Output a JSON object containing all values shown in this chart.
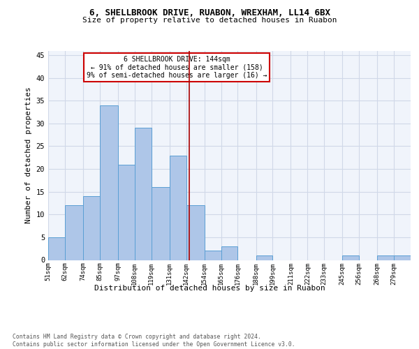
{
  "title1": "6, SHELLBROOK DRIVE, RUABON, WREXHAM, LL14 6BX",
  "title2": "Size of property relative to detached houses in Ruabon",
  "xlabel": "Distribution of detached houses by size in Ruabon",
  "ylabel": "Number of detached properties",
  "footnote": "Contains HM Land Registry data © Crown copyright and database right 2024.\nContains public sector information licensed under the Open Government Licence v3.0.",
  "bin_labels": [
    "51sqm",
    "62sqm",
    "74sqm",
    "85sqm",
    "97sqm",
    "108sqm",
    "119sqm",
    "131sqm",
    "142sqm",
    "154sqm",
    "165sqm",
    "176sqm",
    "188sqm",
    "199sqm",
    "211sqm",
    "222sqm",
    "233sqm",
    "245sqm",
    "256sqm",
    "268sqm",
    "279sqm"
  ],
  "bin_edges": [
    51,
    62,
    74,
    85,
    97,
    108,
    119,
    131,
    142,
    154,
    165,
    176,
    188,
    199,
    211,
    222,
    233,
    245,
    256,
    268,
    279,
    290
  ],
  "counts": [
    5,
    12,
    14,
    34,
    21,
    29,
    16,
    23,
    12,
    2,
    3,
    0,
    1,
    0,
    0,
    0,
    0,
    1,
    0,
    1,
    1
  ],
  "bar_color": "#aec6e8",
  "bar_edge_color": "#5a9fd4",
  "property_size": 144,
  "annotation_title": "6 SHELLBROOK DRIVE: 144sqm",
  "annotation_line1": "← 91% of detached houses are smaller (158)",
  "annotation_line2": "9% of semi-detached houses are larger (16) →",
  "annotation_box_color": "#ffffff",
  "annotation_box_edge_color": "#cc0000",
  "vline_color": "#aa0000",
  "ylim": [
    0,
    46
  ],
  "yticks": [
    0,
    5,
    10,
    15,
    20,
    25,
    30,
    35,
    40,
    45
  ],
  "grid_color": "#d0d8e8",
  "background_color": "#f0f4fb"
}
